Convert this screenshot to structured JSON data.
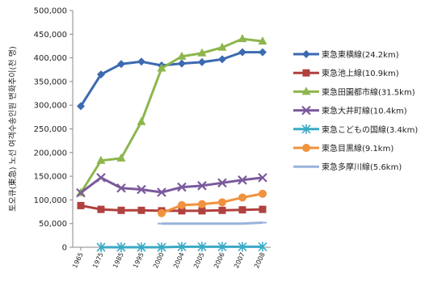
{
  "chart_data": {
    "type": "line",
    "ylabel": "토오큐(東急) 노선 여객수송인원 변화추이(천 명)",
    "xlabel": "",
    "ylim": [
      0,
      500000
    ],
    "yticks": [
      "0",
      "50,000",
      "100,000",
      "150,000",
      "200,000",
      "250,000",
      "300,000",
      "350,000",
      "400,000",
      "450,000",
      "500,000"
    ],
    "categories": [
      "1965",
      "1975",
      "1985",
      "1995",
      "2000",
      "2004",
      "2005",
      "2006",
      "2007",
      "2008"
    ],
    "grid": false,
    "legend_position": "right",
    "series": [
      {
        "name": "東急東横線(24.2km)",
        "color": "#3c6ab0",
        "marker": "diamond",
        "values": [
          298000,
          365000,
          387000,
          392000,
          384000,
          388000,
          391000,
          397000,
          412000,
          412000
        ]
      },
      {
        "name": "東急池上線(10.9km)",
        "color": "#b0413e",
        "marker": "square",
        "values": [
          88000,
          80000,
          78000,
          78000,
          77000,
          77000,
          77000,
          78000,
          79000,
          80000
        ]
      },
      {
        "name": "東急田園都市線(31.5km)",
        "color": "#8db64c",
        "marker": "triangle",
        "values": [
          115000,
          183000,
          188000,
          265000,
          378000,
          403000,
          410000,
          422000,
          440000,
          435000
        ]
      },
      {
        "name": "東急大井町線(10.4km)",
        "color": "#7b5a9c",
        "marker": "x",
        "values": [
          115000,
          147000,
          125000,
          122000,
          116000,
          127000,
          130000,
          136000,
          142000,
          147000
        ]
      },
      {
        "name": "東急こどもの国線(3.4km)",
        "color": "#3aaac6",
        "marker": "star",
        "values": [
          null,
          0,
          0,
          0,
          0,
          1000,
          1000,
          1000,
          1000,
          1000
        ]
      },
      {
        "name": "東急目黒線(9.1km)",
        "color": "#f0923e",
        "marker": "circle",
        "values": [
          null,
          null,
          null,
          null,
          72000,
          89000,
          91000,
          95000,
          105000,
          113000
        ]
      },
      {
        "name": "東急多摩川線(5.6km)",
        "color": "#99b3dc",
        "marker": "dash",
        "values": [
          null,
          null,
          null,
          null,
          50000,
          50000,
          50000,
          50000,
          50000,
          52000
        ]
      }
    ]
  }
}
